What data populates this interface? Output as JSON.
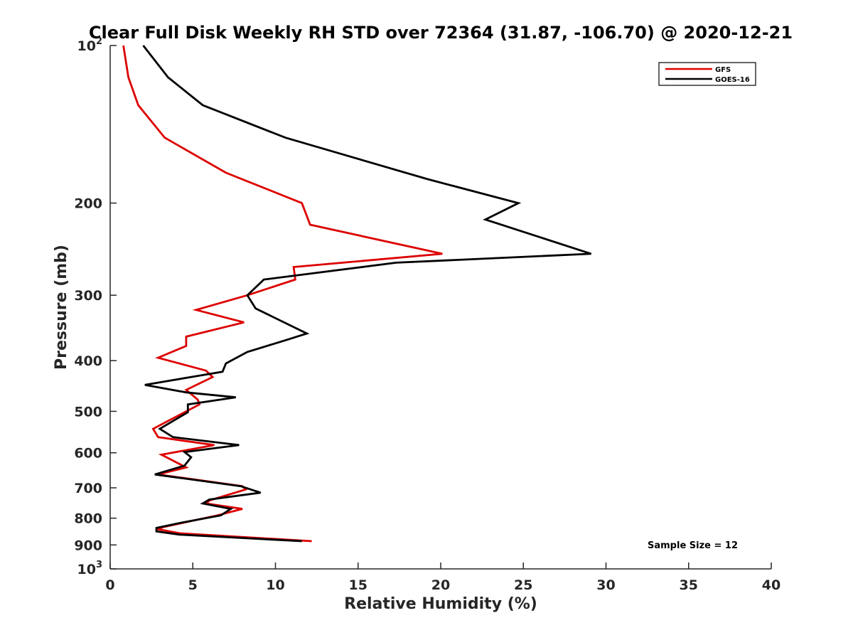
{
  "colors": {
    "gfs": "#dd0000",
    "goes": "#000000",
    "axis": "#262626"
  },
  "chart_data": {
    "type": "line",
    "title": "Clear Full Disk Weekly RH STD over 72364 (31.87, -106.70) @ 2020-12-21",
    "xlabel": "Relative Humidity (%)",
    "ylabel": "Pressure (mb)",
    "xlim": [
      0,
      40
    ],
    "ylim": [
      100,
      1000
    ],
    "y_scale": "log",
    "y_reversed": true,
    "grid": false,
    "legend_position": "top-right",
    "x_ticks": [
      "0",
      "5",
      "10",
      "15",
      "20",
      "25",
      "30",
      "35",
      "40"
    ],
    "y_ticks": [
      {
        "value": 100,
        "base": "10",
        "exp": "2"
      },
      {
        "value": 200,
        "label": "200"
      },
      {
        "value": 300,
        "label": "300"
      },
      {
        "value": 400,
        "label": "400"
      },
      {
        "value": 500,
        "label": "500"
      },
      {
        "value": 600,
        "label": "600"
      },
      {
        "value": 700,
        "label": "700"
      },
      {
        "value": 800,
        "label": "800"
      },
      {
        "value": 900,
        "label": "900"
      },
      {
        "value": 1000,
        "base": "10",
        "exp": "3"
      }
    ],
    "annotation": "Sample Size = 12",
    "series": [
      {
        "name": "GFS",
        "color": "#dd0000",
        "points": [
          {
            "x": 0.8,
            "y": 100
          },
          {
            "x": 1.1,
            "y": 115
          },
          {
            "x": 1.7,
            "y": 130
          },
          {
            "x": 3.3,
            "y": 150
          },
          {
            "x": 7.0,
            "y": 175
          },
          {
            "x": 11.6,
            "y": 200
          },
          {
            "x": 12.1,
            "y": 220
          },
          {
            "x": 20.1,
            "y": 250
          },
          {
            "x": 11.1,
            "y": 265
          },
          {
            "x": 11.2,
            "y": 280
          },
          {
            "x": 8.3,
            "y": 300
          },
          {
            "x": 5.2,
            "y": 320
          },
          {
            "x": 8.1,
            "y": 338
          },
          {
            "x": 4.6,
            "y": 360
          },
          {
            "x": 4.6,
            "y": 375
          },
          {
            "x": 2.9,
            "y": 395
          },
          {
            "x": 5.8,
            "y": 418
          },
          {
            "x": 6.2,
            "y": 430
          },
          {
            "x": 4.6,
            "y": 455
          },
          {
            "x": 5.3,
            "y": 475
          },
          {
            "x": 5.4,
            "y": 485
          },
          {
            "x": 2.6,
            "y": 540
          },
          {
            "x": 2.9,
            "y": 560
          },
          {
            "x": 6.3,
            "y": 580
          },
          {
            "x": 3.1,
            "y": 605
          },
          {
            "x": 4.6,
            "y": 640
          },
          {
            "x": 2.9,
            "y": 660
          },
          {
            "x": 8.0,
            "y": 695
          },
          {
            "x": 8.2,
            "y": 705
          },
          {
            "x": 6.0,
            "y": 740
          },
          {
            "x": 5.8,
            "y": 750
          },
          {
            "x": 8.0,
            "y": 768
          },
          {
            "x": 6.5,
            "y": 790
          },
          {
            "x": 3.2,
            "y": 832
          },
          {
            "x": 2.9,
            "y": 840
          },
          {
            "x": 4.2,
            "y": 855
          },
          {
            "x": 12.2,
            "y": 885
          }
        ]
      },
      {
        "name": "GOES-16",
        "color": "#000000",
        "points": [
          {
            "x": 2.0,
            "y": 100
          },
          {
            "x": 3.5,
            "y": 115
          },
          {
            "x": 5.6,
            "y": 130
          },
          {
            "x": 10.6,
            "y": 150
          },
          {
            "x": 19.2,
            "y": 180
          },
          {
            "x": 24.7,
            "y": 200
          },
          {
            "x": 22.7,
            "y": 215
          },
          {
            "x": 29.1,
            "y": 250
          },
          {
            "x": 17.3,
            "y": 260
          },
          {
            "x": 9.3,
            "y": 280
          },
          {
            "x": 8.3,
            "y": 300
          },
          {
            "x": 8.8,
            "y": 318
          },
          {
            "x": 11.9,
            "y": 355
          },
          {
            "x": 10.7,
            "y": 365
          },
          {
            "x": 8.3,
            "y": 385
          },
          {
            "x": 7.0,
            "y": 405
          },
          {
            "x": 6.8,
            "y": 420
          },
          {
            "x": 2.1,
            "y": 445
          },
          {
            "x": 4.6,
            "y": 460
          },
          {
            "x": 7.6,
            "y": 470
          },
          {
            "x": 4.7,
            "y": 485
          },
          {
            "x": 4.7,
            "y": 502
          },
          {
            "x": 3.0,
            "y": 540
          },
          {
            "x": 3.8,
            "y": 560
          },
          {
            "x": 7.8,
            "y": 580
          },
          {
            "x": 4.5,
            "y": 598
          },
          {
            "x": 4.9,
            "y": 612
          },
          {
            "x": 4.5,
            "y": 635
          },
          {
            "x": 2.7,
            "y": 660
          },
          {
            "x": 7.9,
            "y": 695
          },
          {
            "x": 9.1,
            "y": 715
          },
          {
            "x": 6.0,
            "y": 737
          },
          {
            "x": 5.6,
            "y": 750
          },
          {
            "x": 7.3,
            "y": 768
          },
          {
            "x": 6.7,
            "y": 790
          },
          {
            "x": 4.4,
            "y": 815
          },
          {
            "x": 2.8,
            "y": 835
          },
          {
            "x": 2.8,
            "y": 848
          },
          {
            "x": 4.2,
            "y": 860
          },
          {
            "x": 11.6,
            "y": 885
          }
        ]
      }
    ]
  }
}
